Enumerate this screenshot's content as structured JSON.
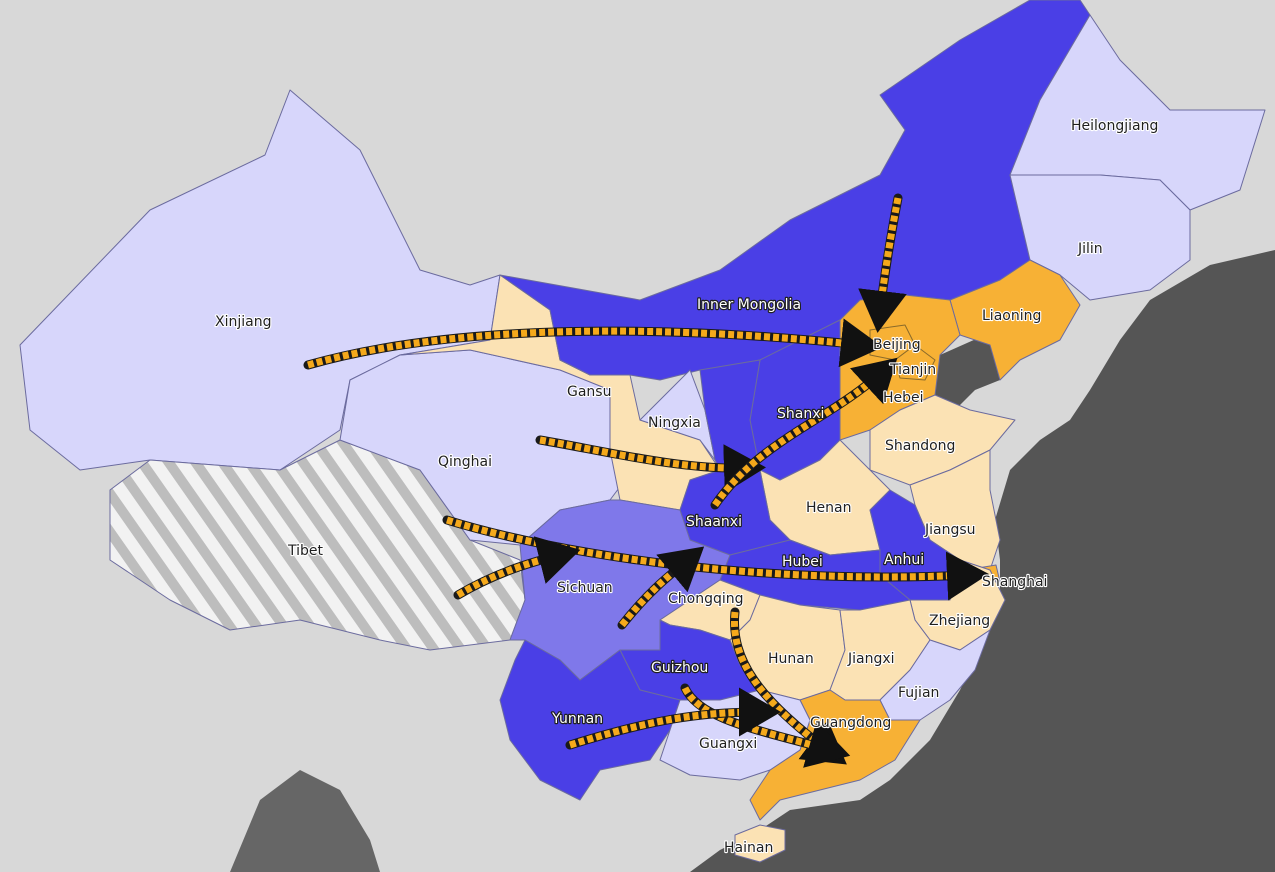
{
  "colors": {
    "land": "#d8d8d8",
    "sea": "#555555",
    "deep_blue": "#4a3fe6",
    "mid_blue": "#7f78ea",
    "light_blue": "#d7d6fb",
    "orange": "#f7b135",
    "light_orange": "#fbe2b4",
    "hatched": "#ebebeb",
    "arrow": "#f5a91b"
  },
  "regions": [
    {
      "name": "Xinjiang",
      "color_class": "light_blue"
    },
    {
      "name": "Tibet",
      "color_class": "hatched"
    },
    {
      "name": "Qinghai",
      "color_class": "light_blue"
    },
    {
      "name": "Gansu",
      "color_class": "light_orange"
    },
    {
      "name": "Inner Mongolia",
      "color_class": "deep_blue"
    },
    {
      "name": "Heilongjiang",
      "color_class": "light_blue"
    },
    {
      "name": "Jilin",
      "color_class": "light_blue"
    },
    {
      "name": "Liaoning",
      "color_class": "orange"
    },
    {
      "name": "Beijing",
      "color_class": "orange"
    },
    {
      "name": "Tianjin",
      "color_class": "orange"
    },
    {
      "name": "Hebei",
      "color_class": "orange"
    },
    {
      "name": "Ningxia",
      "color_class": "light_blue"
    },
    {
      "name": "Shanxi",
      "color_class": "deep_blue"
    },
    {
      "name": "Shandong",
      "color_class": "light_orange"
    },
    {
      "name": "Henan",
      "color_class": "light_orange"
    },
    {
      "name": "Shaanxi",
      "color_class": "deep_blue"
    },
    {
      "name": "Jiangsu",
      "color_class": "light_orange"
    },
    {
      "name": "Anhui",
      "color_class": "deep_blue"
    },
    {
      "name": "Hubei",
      "color_class": "deep_blue"
    },
    {
      "name": "Shanghai",
      "color_class": "orange"
    },
    {
      "name": "Sichuan",
      "color_class": "mid_blue"
    },
    {
      "name": "Chongqing",
      "color_class": "light_orange"
    },
    {
      "name": "Zhejiang",
      "color_class": "light_orange"
    },
    {
      "name": "Hunan",
      "color_class": "light_orange"
    },
    {
      "name": "Jiangxi",
      "color_class": "light_orange"
    },
    {
      "name": "Guizhou",
      "color_class": "deep_blue"
    },
    {
      "name": "Fujian",
      "color_class": "light_blue"
    },
    {
      "name": "Yunnan",
      "color_class": "deep_blue"
    },
    {
      "name": "Guangdong",
      "color_class": "orange"
    },
    {
      "name": "Guangxi",
      "color_class": "light_blue"
    },
    {
      "name": "Hainan",
      "color_class": "light_orange"
    }
  ],
  "flows": [
    {
      "from": "Xinjiang",
      "to": "Beijing"
    },
    {
      "from": "Inner Mongolia",
      "to": "Beijing"
    },
    {
      "from": "Qinghai",
      "to": "Shanxi"
    },
    {
      "from": "Shaanxi",
      "to": "Tianjin"
    },
    {
      "from": "Tibet",
      "to": "Shanghai"
    },
    {
      "from": "Sichuan",
      "to": "Shanghai"
    },
    {
      "from": "Sichuan",
      "to": "Chongqing"
    },
    {
      "from": "Chongqing",
      "to": "Guangdong"
    },
    {
      "from": "Guizhou",
      "to": "Guangdong"
    },
    {
      "from": "Yunnan",
      "to": "Guangdong"
    }
  ]
}
